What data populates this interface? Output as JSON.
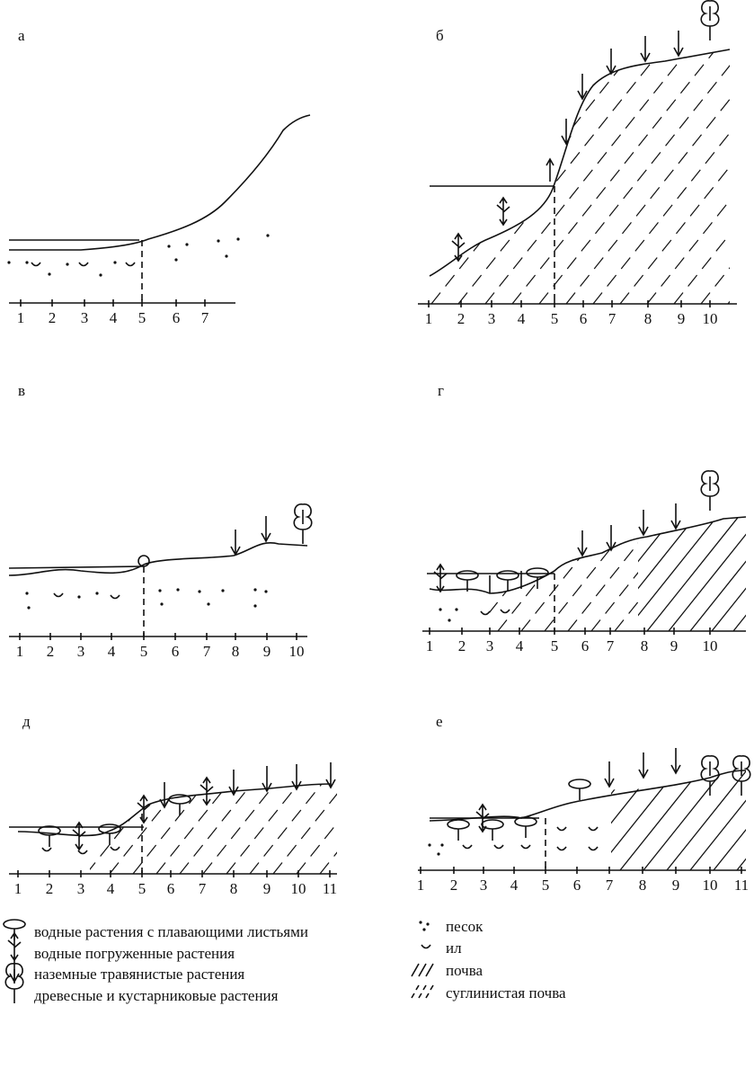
{
  "panels": [
    {
      "label": "а",
      "ticks": [
        1,
        2,
        3,
        4,
        5,
        6,
        7
      ]
    },
    {
      "label": "б",
      "ticks": [
        1,
        2,
        3,
        4,
        5,
        6,
        7,
        8,
        9,
        10
      ]
    },
    {
      "label": "в",
      "ticks": [
        1,
        2,
        3,
        4,
        5,
        6,
        7,
        8,
        9,
        10
      ]
    },
    {
      "label": "г",
      "ticks": [
        1,
        2,
        3,
        4,
        5,
        6,
        7,
        8,
        9,
        10
      ]
    },
    {
      "label": "д",
      "ticks": [
        1,
        2,
        3,
        4,
        5,
        6,
        7,
        8,
        9,
        10,
        11
      ]
    },
    {
      "label": "е",
      "ticks": [
        1,
        2,
        3,
        4,
        5,
        6,
        7,
        8,
        9,
        10,
        11
      ]
    }
  ],
  "legend": {
    "left": [
      "водные растения с плавающими листьями",
      "водные погруженные растения",
      "наземные травянистые растения",
      "древесные и кустарниковые растения"
    ],
    "right": [
      "песок",
      "ил",
      "почва",
      "суглинистая почва"
    ]
  }
}
